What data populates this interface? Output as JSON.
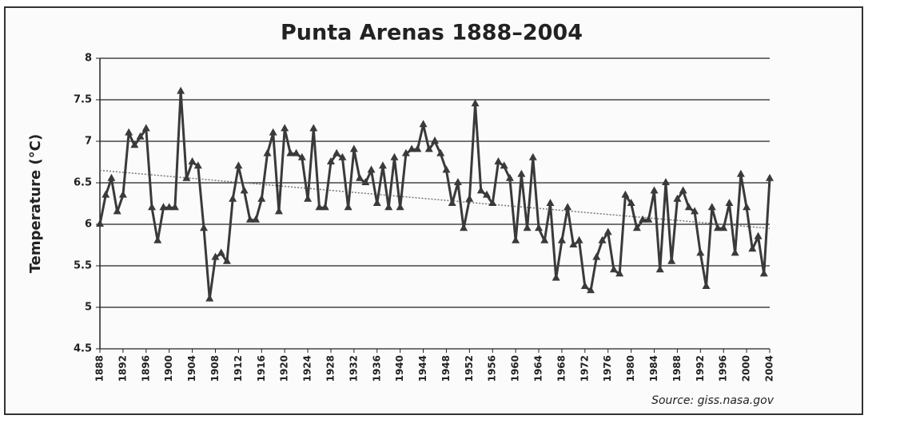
{
  "chart_data": {
    "type": "line",
    "title": "Punta Arenas 1888–2004",
    "ylabel": "Temperature (°C)",
    "source": "Source: giss.nasa.gov",
    "x": [
      1888,
      1889,
      1890,
      1891,
      1892,
      1893,
      1894,
      1895,
      1896,
      1897,
      1898,
      1899,
      1900,
      1901,
      1902,
      1903,
      1904,
      1905,
      1906,
      1907,
      1908,
      1909,
      1910,
      1911,
      1912,
      1913,
      1914,
      1915,
      1916,
      1917,
      1918,
      1919,
      1920,
      1921,
      1922,
      1923,
      1924,
      1925,
      1926,
      1927,
      1928,
      1929,
      1930,
      1931,
      1932,
      1933,
      1934,
      1935,
      1936,
      1937,
      1938,
      1939,
      1940,
      1941,
      1942,
      1943,
      1944,
      1945,
      1946,
      1947,
      1948,
      1949,
      1950,
      1951,
      1952,
      1953,
      1954,
      1955,
      1956,
      1957,
      1958,
      1959,
      1960,
      1961,
      1962,
      1963,
      1964,
      1965,
      1966,
      1967,
      1968,
      1969,
      1970,
      1971,
      1972,
      1973,
      1974,
      1975,
      1976,
      1977,
      1978,
      1979,
      1980,
      1981,
      1982,
      1983,
      1984,
      1985,
      1986,
      1987,
      1988,
      1989,
      1990,
      1991,
      1992,
      1993,
      1994,
      1995,
      1996,
      1997,
      1998,
      1999,
      2000,
      2001,
      2002,
      2003,
      2004
    ],
    "series": [
      {
        "color": "#3a3a3a",
        "values": [
          6.0,
          6.35,
          6.55,
          6.15,
          6.35,
          7.1,
          6.95,
          7.05,
          7.15,
          6.2,
          5.8,
          6.2,
          6.2,
          6.2,
          7.6,
          6.55,
          6.75,
          6.7,
          5.95,
          5.1,
          5.6,
          5.65,
          5.55,
          6.3,
          6.7,
          6.4,
          6.05,
          6.05,
          6.3,
          6.85,
          7.1,
          6.15,
          7.15,
          6.85,
          6.85,
          6.8,
          6.3,
          7.15,
          6.2,
          6.2,
          6.75,
          6.85,
          6.8,
          6.2,
          6.9,
          6.55,
          6.5,
          6.65,
          6.25,
          6.7,
          6.2,
          6.8,
          6.2,
          6.85,
          6.9,
          6.9,
          7.2,
          6.9,
          7.0,
          6.85,
          6.65,
          6.25,
          6.5,
          5.95,
          6.3,
          7.45,
          6.4,
          6.35,
          6.25,
          6.75,
          6.7,
          6.55,
          5.8,
          6.6,
          5.95,
          6.8,
          5.95,
          5.8,
          6.25,
          5.35,
          5.8,
          6.2,
          5.75,
          5.8,
          5.25,
          5.2,
          5.6,
          5.8,
          5.9,
          5.45,
          5.4,
          6.35,
          6.25,
          5.95,
          6.05,
          6.05,
          6.4,
          5.45,
          6.5,
          5.55,
          6.3,
          6.4,
          6.2,
          6.15,
          5.65,
          5.25,
          6.2,
          5.95,
          5.95,
          6.25,
          5.65,
          6.6,
          6.2,
          5.7,
          5.85,
          5.4,
          6.55
        ]
      }
    ],
    "trend": {
      "color": "#777777",
      "x": [
        1888,
        2004
      ],
      "values": [
        6.65,
        5.95
      ]
    },
    "xlim": [
      1888,
      2004
    ],
    "xticks": [
      1888,
      1892,
      1896,
      1900,
      1904,
      1908,
      1912,
      1916,
      1920,
      1924,
      1928,
      1932,
      1936,
      1940,
      1944,
      1948,
      1952,
      1956,
      1960,
      1964,
      1968,
      1972,
      1976,
      1980,
      1984,
      1988,
      1992,
      1996,
      2000,
      2004
    ],
    "ylim": [
      4.5,
      8
    ],
    "yticks": [
      4.5,
      5,
      5.5,
      6,
      6.5,
      7,
      7.5,
      8
    ],
    "grid": true
  }
}
